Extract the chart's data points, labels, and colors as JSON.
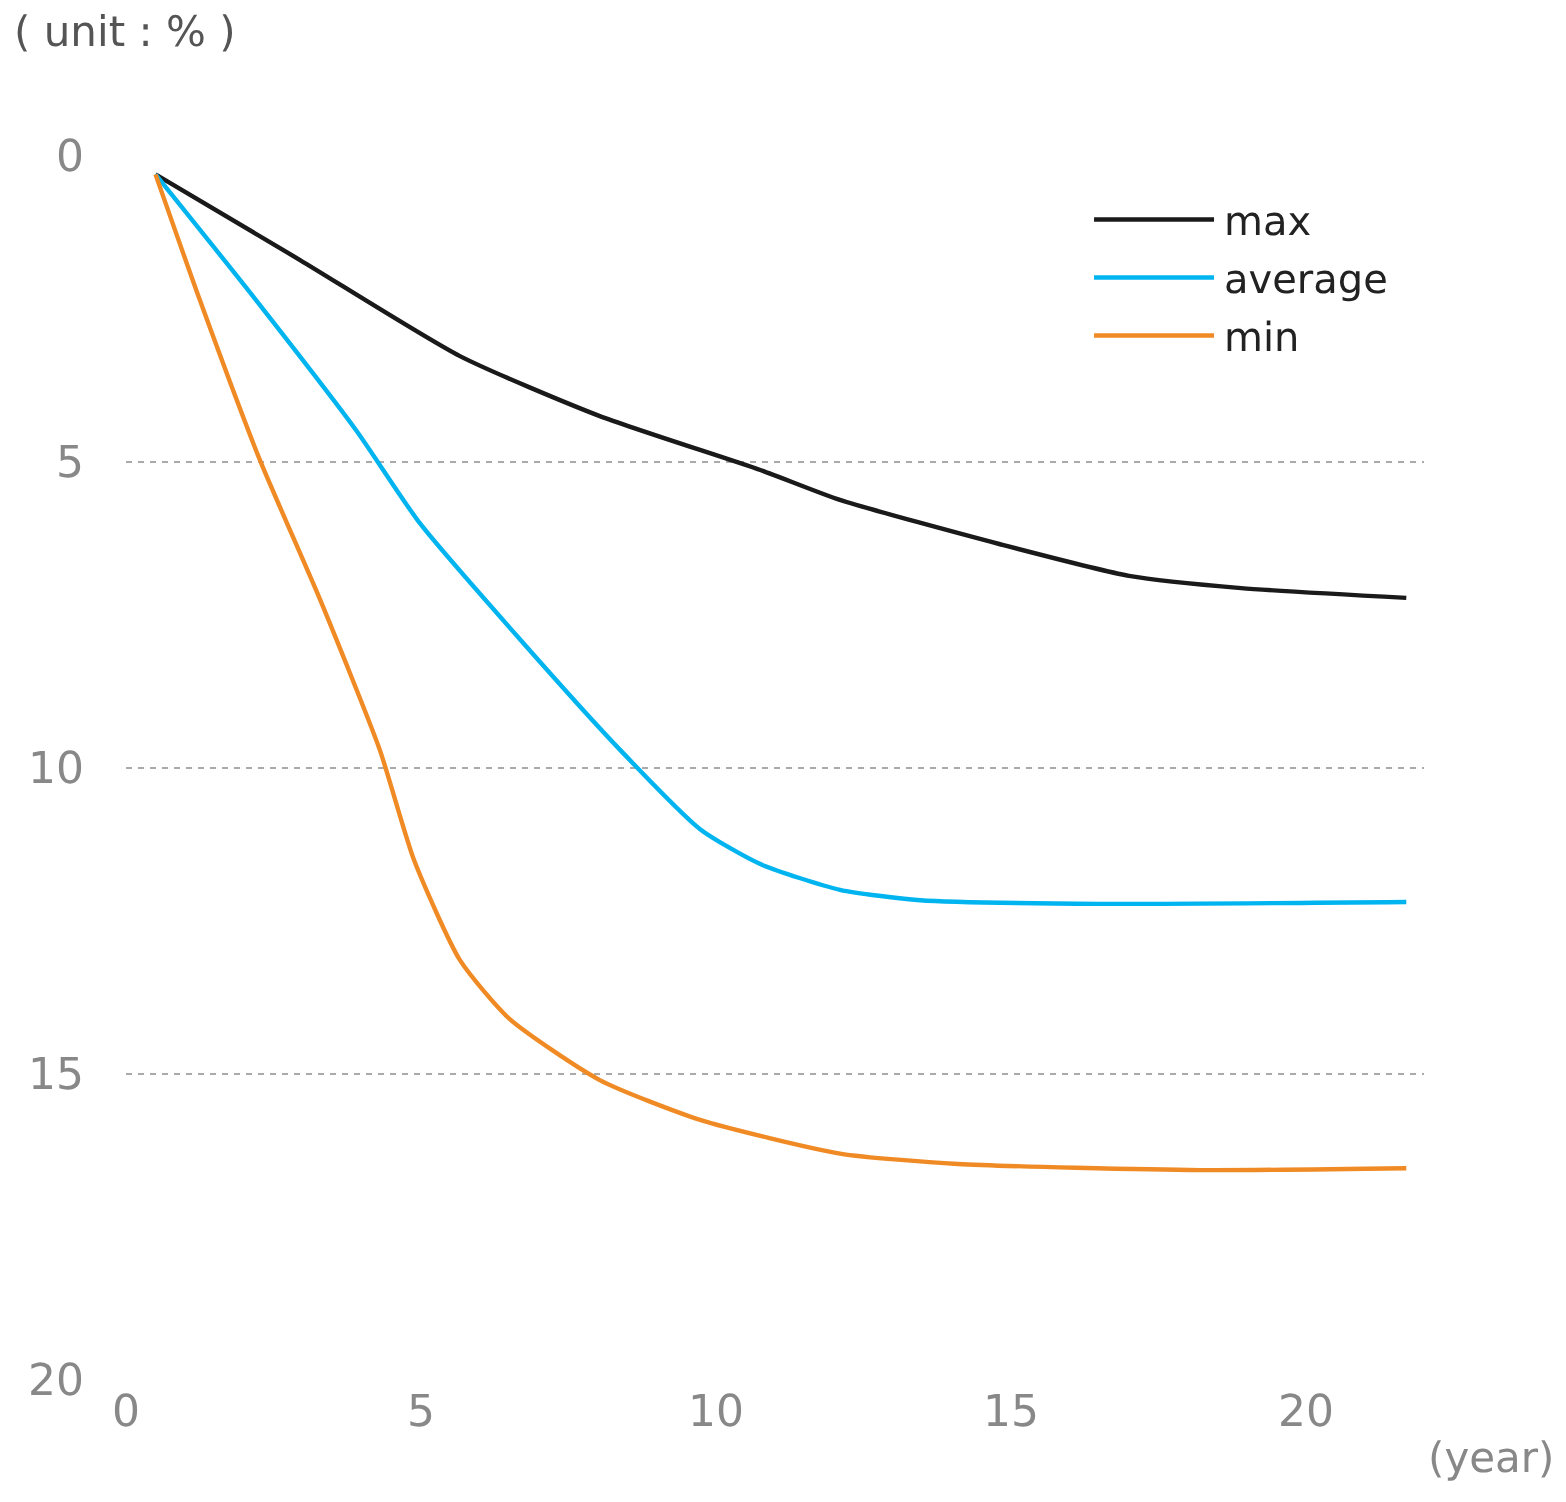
{
  "chart_data": {
    "type": "line",
    "ylabel": "( unit : % )",
    "xlabel": "(year)",
    "xlim": [
      0,
      22
    ],
    "xticks": [
      0,
      5,
      10,
      15,
      20
    ],
    "ylim": [
      20,
      0
    ],
    "yticks": [
      0,
      5,
      10,
      15,
      20
    ],
    "grid": "y",
    "legend": "top right",
    "marker": "none",
    "line_style": "solid",
    "series": [
      {
        "name": "max",
        "color": "#1a1a1a",
        "x": [
          0.5,
          2.95,
          5.66,
          8.03,
          10.75,
          12.1,
          14.8,
          17.0,
          18.9,
          21.7
        ],
        "values": [
          0.3,
          1.7,
          3.27,
          4.25,
          5.13,
          5.62,
          6.34,
          6.86,
          7.06,
          7.22
        ]
      },
      {
        "name": "average",
        "color": "#00b4f0",
        "x": [
          0.5,
          2.2,
          3.9,
          4.98,
          6.68,
          8.37,
          9.73,
          10.75,
          12.1,
          13.46,
          16.5,
          21.7
        ],
        "values": [
          0.3,
          2.35,
          4.48,
          6.0,
          7.9,
          9.7,
          11.0,
          11.57,
          11.99,
          12.16,
          12.22,
          12.19
        ]
      },
      {
        "name": "min",
        "color": "#f08a24",
        "x": [
          0.5,
          1.25,
          2.27,
          3.29,
          4.3,
          4.88,
          5.66,
          6.5,
          8.03,
          9.73,
          12.1,
          14.1,
          18.2,
          21.7
        ],
        "values": [
          0.3,
          2.35,
          4.97,
          7.25,
          9.7,
          11.5,
          13.14,
          14.1,
          15.1,
          15.75,
          16.3,
          16.47,
          16.57,
          16.54
        ]
      }
    ]
  }
}
